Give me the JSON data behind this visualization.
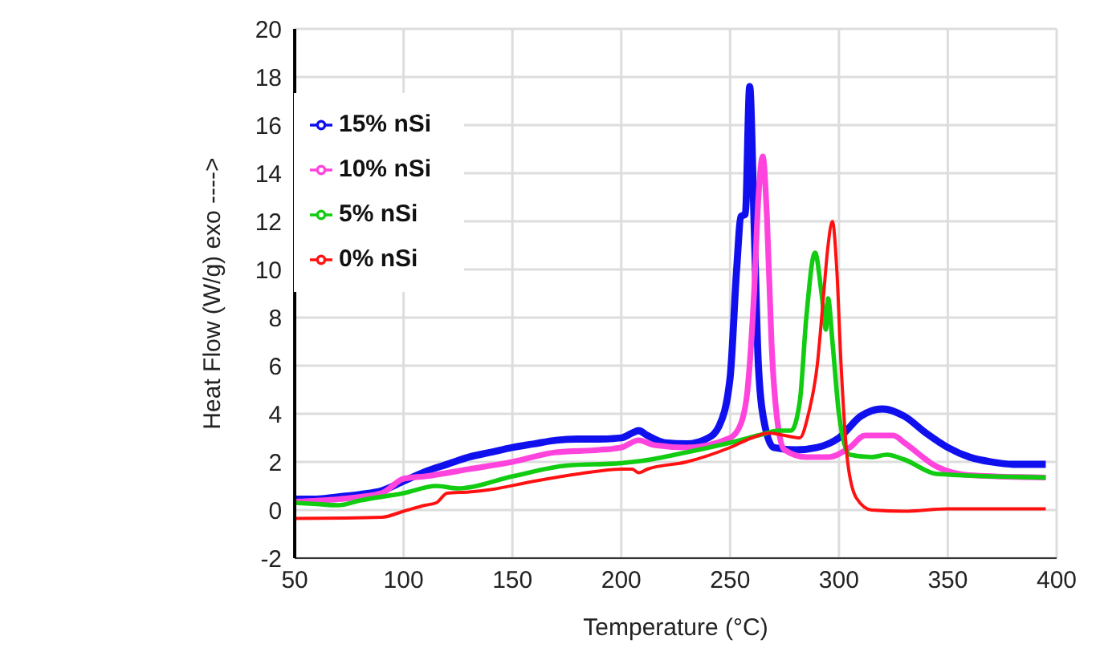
{
  "chart_data": {
    "type": "line",
    "xlabel": "Temperature (°C)",
    "ylabel": "Heat Flow (W/g)   exo ---->",
    "xlim": [
      50,
      400
    ],
    "xticks": [
      50,
      100,
      150,
      200,
      250,
      300,
      350,
      400
    ],
    "ylim": [
      -2,
      20
    ],
    "yticks": [
      -2,
      0,
      2,
      4,
      6,
      8,
      10,
      12,
      14,
      16,
      18,
      20
    ],
    "grid": true,
    "legend": "top left",
    "marker": "none",
    "line_style": "solid",
    "series": [
      {
        "name": "15% nSi",
        "color": "#1010ee",
        "x": [
          50,
          60,
          70,
          80,
          90,
          100,
          110,
          120,
          130,
          140,
          150,
          160,
          170,
          180,
          190,
          200,
          205,
          208,
          212,
          220,
          230,
          240,
          245,
          250,
          253,
          255,
          257,
          259,
          261,
          263,
          266,
          270,
          280,
          290,
          300,
          310,
          320,
          330,
          340,
          350,
          360,
          370,
          380,
          395
        ],
        "values": [
          0.45,
          0.45,
          0.55,
          0.65,
          0.8,
          1.2,
          1.6,
          1.9,
          2.2,
          2.4,
          2.6,
          2.75,
          2.9,
          2.95,
          2.95,
          3.0,
          3.2,
          3.3,
          3.1,
          2.8,
          2.75,
          3.0,
          3.5,
          5.5,
          10,
          12.2,
          12.3,
          17.6,
          12,
          6,
          3.5,
          2.6,
          2.5,
          2.6,
          3.0,
          3.9,
          4.2,
          3.9,
          3.2,
          2.6,
          2.2,
          2.0,
          1.9,
          1.9
        ]
      },
      {
        "name": "10% nSi",
        "color": "#ff44dd",
        "x": [
          50,
          70,
          90,
          100,
          110,
          130,
          150,
          170,
          190,
          200,
          208,
          215,
          230,
          250,
          255,
          258,
          261,
          263,
          265,
          267,
          269,
          272,
          275,
          285,
          295,
          305,
          312,
          325,
          330,
          345,
          360,
          395
        ],
        "values": [
          0.35,
          0.45,
          0.7,
          1.3,
          1.4,
          1.7,
          2.0,
          2.4,
          2.5,
          2.6,
          2.9,
          2.7,
          2.6,
          3.0,
          3.6,
          5,
          9,
          13,
          14.7,
          12,
          7,
          3.5,
          2.5,
          2.2,
          2.2,
          2.6,
          3.1,
          3.1,
          2.8,
          1.8,
          1.45,
          1.35
        ]
      },
      {
        "name": "5% nSi",
        "color": "#11cc11",
        "x": [
          50,
          60,
          70,
          80,
          100,
          115,
          125,
          150,
          175,
          200,
          210,
          230,
          250,
          265,
          272,
          278,
          282,
          285,
          289,
          292,
          294,
          295,
          297,
          300,
          305,
          315,
          322,
          330,
          345,
          395
        ],
        "values": [
          0.3,
          0.25,
          0.2,
          0.4,
          0.7,
          1.0,
          0.9,
          1.4,
          1.85,
          1.95,
          2.05,
          2.4,
          2.8,
          3.15,
          3.3,
          3.3,
          4.5,
          8,
          10.7,
          9,
          7.5,
          8.8,
          7,
          4,
          2.3,
          2.2,
          2.3,
          2.1,
          1.5,
          1.35
        ]
      },
      {
        "name": "0% nSi",
        "color": "#ff1111",
        "x": [
          50,
          90,
          100,
          110,
          115,
          120,
          130,
          140,
          160,
          180,
          200,
          205,
          208,
          212,
          230,
          250,
          260,
          268,
          275,
          282,
          286,
          290,
          293,
          295,
          297,
          299,
          301,
          304,
          308,
          315,
          330,
          350,
          395
        ],
        "values": [
          -0.35,
          -0.3,
          -0.05,
          0.2,
          0.3,
          0.7,
          0.75,
          0.85,
          1.2,
          1.5,
          1.7,
          1.7,
          1.55,
          1.7,
          2.0,
          2.6,
          3.0,
          3.2,
          3.1,
          3.0,
          4,
          6,
          9,
          11,
          12,
          10,
          6,
          2,
          0.5,
          0,
          -0.05,
          0.05,
          0.05
        ]
      }
    ]
  }
}
